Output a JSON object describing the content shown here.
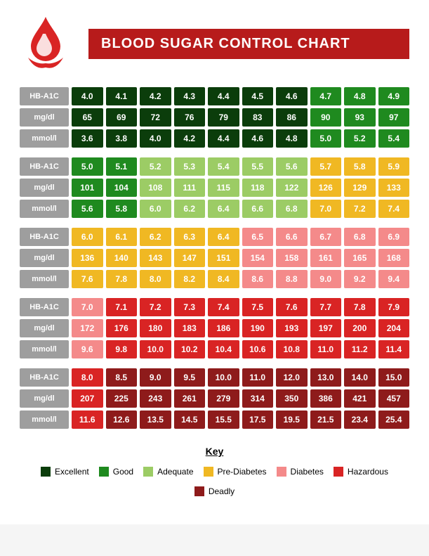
{
  "title": "BLOOD SUGAR CONTROL CHART",
  "rowLabels": [
    "HB-A1C",
    "mg/dl",
    "mmol/l"
  ],
  "colors": {
    "excellent": "#0b3d0b",
    "good": "#1f8a1f",
    "adequate": "#9ccc65",
    "pre": "#f0b823",
    "diabetes": "#f48a8a",
    "hazardous": "#d92424",
    "deadly": "#8e1b1b",
    "label": "#9e9e9e"
  },
  "sections": [
    {
      "rows": [
        [
          "4.0",
          "4.1",
          "4.2",
          "4.3",
          "4.4",
          "4.5",
          "4.6",
          "4.7",
          "4.8",
          "4.9"
        ],
        [
          "65",
          "69",
          "72",
          "76",
          "79",
          "83",
          "86",
          "90",
          "93",
          "97"
        ],
        [
          "3.6",
          "3.8",
          "4.0",
          "4.2",
          "4.4",
          "4.6",
          "4.8",
          "5.0",
          "5.2",
          "5.4"
        ]
      ],
      "cellColors": [
        "excellent",
        "excellent",
        "excellent",
        "excellent",
        "excellent",
        "excellent",
        "excellent",
        "good",
        "good",
        "good"
      ]
    },
    {
      "rows": [
        [
          "5.0",
          "5.1",
          "5.2",
          "5.3",
          "5.4",
          "5.5",
          "5.6",
          "5.7",
          "5.8",
          "5.9"
        ],
        [
          "101",
          "104",
          "108",
          "111",
          "115",
          "118",
          "122",
          "126",
          "129",
          "133"
        ],
        [
          "5.6",
          "5.8",
          "6.0",
          "6.2",
          "6.4",
          "6.6",
          "6.8",
          "7.0",
          "7.2",
          "7.4"
        ]
      ],
      "cellColors": [
        "good",
        "good",
        "adequate",
        "adequate",
        "adequate",
        "adequate",
        "adequate",
        "pre",
        "pre",
        "pre"
      ]
    },
    {
      "rows": [
        [
          "6.0",
          "6.1",
          "6.2",
          "6.3",
          "6.4",
          "6.5",
          "6.6",
          "6.7",
          "6.8",
          "6.9"
        ],
        [
          "136",
          "140",
          "143",
          "147",
          "151",
          "154",
          "158",
          "161",
          "165",
          "168"
        ],
        [
          "7.6",
          "7.8",
          "8.0",
          "8.2",
          "8.4",
          "8.6",
          "8.8",
          "9.0",
          "9.2",
          "9.4"
        ]
      ],
      "cellColors": [
        "pre",
        "pre",
        "pre",
        "pre",
        "pre",
        "diabetes",
        "diabetes",
        "diabetes",
        "diabetes",
        "diabetes"
      ]
    },
    {
      "rows": [
        [
          "7.0",
          "7.1",
          "7.2",
          "7.3",
          "7.4",
          "7.5",
          "7.6",
          "7.7",
          "7.8",
          "7.9"
        ],
        [
          "172",
          "176",
          "180",
          "183",
          "186",
          "190",
          "193",
          "197",
          "200",
          "204"
        ],
        [
          "9.6",
          "9.8",
          "10.0",
          "10.2",
          "10.4",
          "10.6",
          "10.8",
          "11.0",
          "11.2",
          "11.4"
        ]
      ],
      "cellColors": [
        "diabetes",
        "hazardous",
        "hazardous",
        "hazardous",
        "hazardous",
        "hazardous",
        "hazardous",
        "hazardous",
        "hazardous",
        "hazardous"
      ]
    },
    {
      "rows": [
        [
          "8.0",
          "8.5",
          "9.0",
          "9.5",
          "10.0",
          "11.0",
          "12.0",
          "13.0",
          "14.0",
          "15.0"
        ],
        [
          "207",
          "225",
          "243",
          "261",
          "279",
          "314",
          "350",
          "386",
          "421",
          "457"
        ],
        [
          "11.6",
          "12.6",
          "13.5",
          "14.5",
          "15.5",
          "17.5",
          "19.5",
          "21.5",
          "23.4",
          "25.4"
        ]
      ],
      "cellColors": [
        "hazardous",
        "deadly",
        "deadly",
        "deadly",
        "deadly",
        "deadly",
        "deadly",
        "deadly",
        "deadly",
        "deadly"
      ]
    }
  ],
  "keyTitle": "Key",
  "legend": [
    {
      "label": "Excellent",
      "color": "excellent"
    },
    {
      "label": "Good",
      "color": "good"
    },
    {
      "label": "Adequate",
      "color": "adequate"
    },
    {
      "label": "Pre-Diabetes",
      "color": "pre"
    },
    {
      "label": "Diabetes",
      "color": "diabetes"
    },
    {
      "label": "Hazardous",
      "color": "hazardous"
    },
    {
      "label": "Deadly",
      "color": "deadly"
    }
  ]
}
